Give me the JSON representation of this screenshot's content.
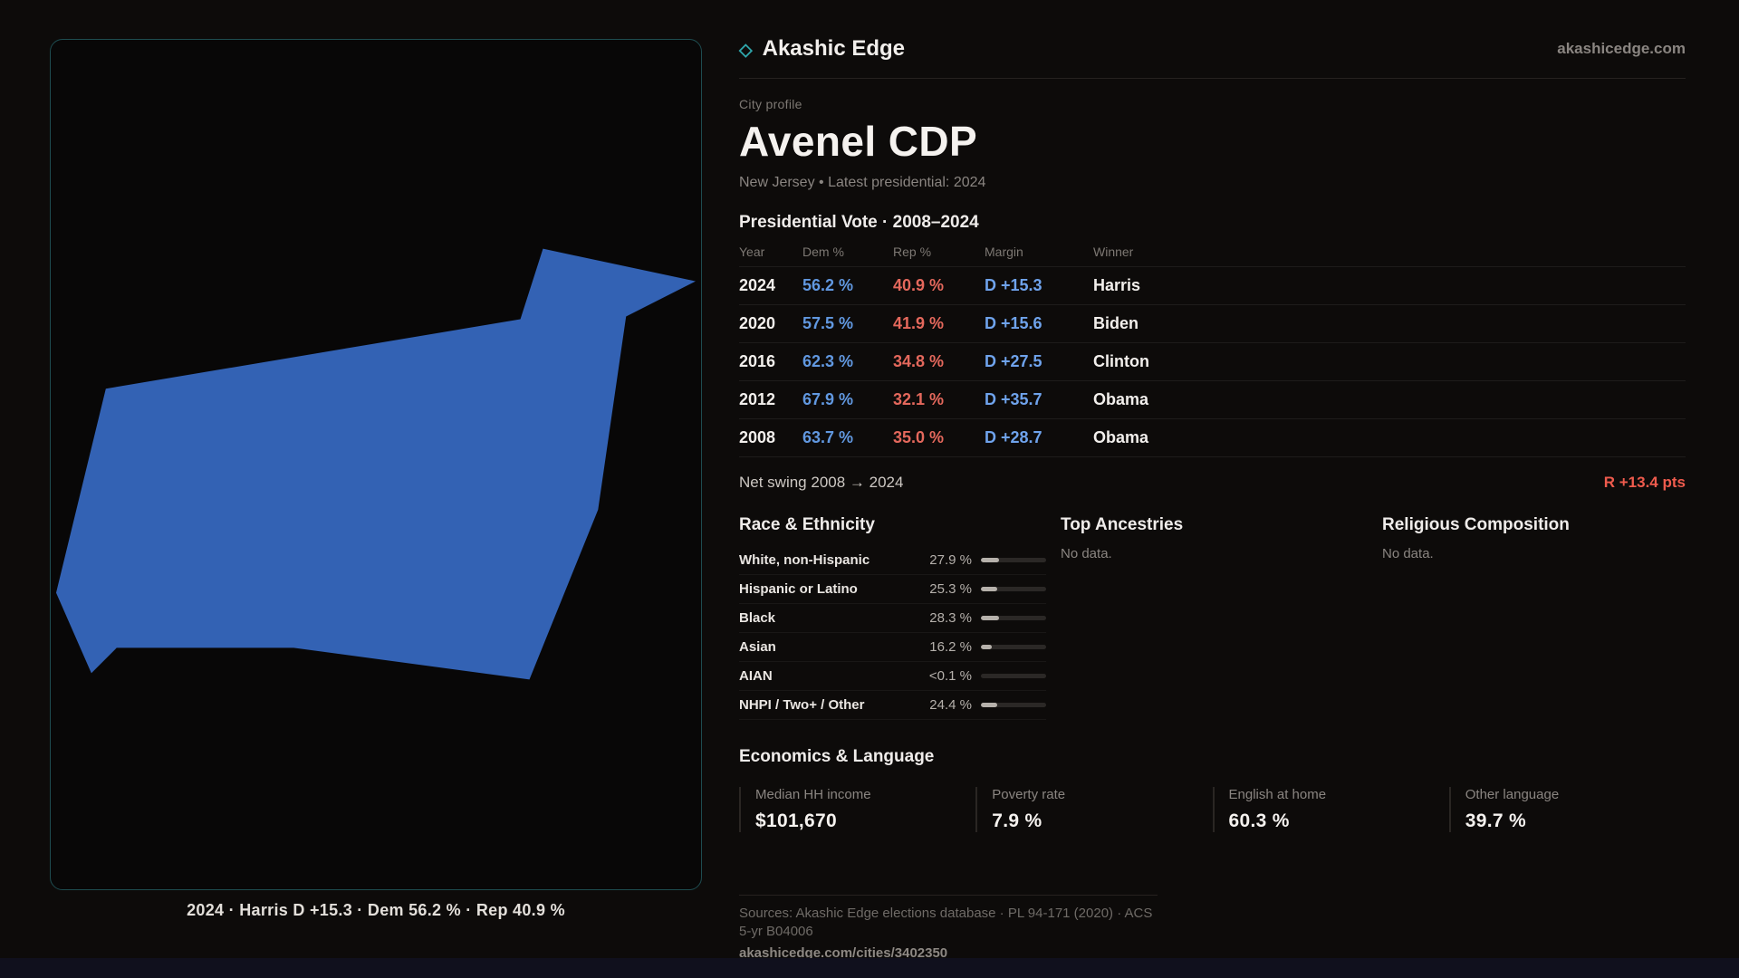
{
  "colors": {
    "accent": "#2fa6ab",
    "dem": "#6198e0",
    "rep": "#e4685c",
    "margin": "#6fa3ec",
    "swing": "#ef5b4d",
    "map_fill": "#3362b4"
  },
  "brand": {
    "name": "Akashic Edge",
    "icon": "◇",
    "site": "akashicedge.com"
  },
  "map": {
    "caption": "2024 · Harris D +15.3 · Dem 56.2 % · Rep 40.9 %"
  },
  "profile": {
    "eyebrow": "City profile",
    "title": "Avenel CDP",
    "meta": "New Jersey • Latest presidential: 2024"
  },
  "vote_table": {
    "title": "Presidential Vote · 2008–2024",
    "columns": [
      "Year",
      "Dem %",
      "Rep %",
      "Margin",
      "Winner"
    ],
    "rows": [
      {
        "year": "2024",
        "dem": "56.2 %",
        "rep": "40.9 %",
        "margin": "D +15.3",
        "winner": "Harris"
      },
      {
        "year": "2020",
        "dem": "57.5 %",
        "rep": "41.9 %",
        "margin": "D +15.6",
        "winner": "Biden"
      },
      {
        "year": "2016",
        "dem": "62.3 %",
        "rep": "34.8 %",
        "margin": "D +27.5",
        "winner": "Clinton"
      },
      {
        "year": "2012",
        "dem": "67.9 %",
        "rep": "32.1 %",
        "margin": "D +35.7",
        "winner": "Obama"
      },
      {
        "year": "2008",
        "dem": "63.7 %",
        "rep": "35.0 %",
        "margin": "D +28.7",
        "winner": "Obama"
      }
    ]
  },
  "net_swing": {
    "label": "Net swing 2008 → 2024",
    "value": "R +13.4 pts"
  },
  "race": {
    "title": "Race & Ethnicity",
    "rows": [
      {
        "label": "White, non-Hispanic",
        "value": "27.9 %",
        "pct": 27.9
      },
      {
        "label": "Hispanic or Latino",
        "value": "25.3 %",
        "pct": 25.3
      },
      {
        "label": "Black",
        "value": "28.3 %",
        "pct": 28.3
      },
      {
        "label": "Asian",
        "value": "16.2 %",
        "pct": 16.2
      },
      {
        "label": "AIAN",
        "value": "<0.1 %",
        "pct": 0
      },
      {
        "label": "NHPI / Two+ / Other",
        "value": "24.4 %",
        "pct": 24.4
      }
    ]
  },
  "ancestries": {
    "title": "Top Ancestries",
    "empty": "No data."
  },
  "religion": {
    "title": "Religious Composition",
    "empty": "No data."
  },
  "economics": {
    "title": "Economics & Language",
    "stats": [
      {
        "label": "Median HH income",
        "value": "$101,670"
      },
      {
        "label": "Poverty rate",
        "value": "7.9 %"
      },
      {
        "label": "English at home",
        "value": "60.3 %"
      },
      {
        "label": "Other language",
        "value": "39.7 %"
      }
    ]
  },
  "footer": {
    "sources": "Sources: Akashic Edge elections database · PL 94-171 (2020) · ACS 5-yr B04006",
    "permalink": "akashicedge.com/cities/3402350"
  }
}
